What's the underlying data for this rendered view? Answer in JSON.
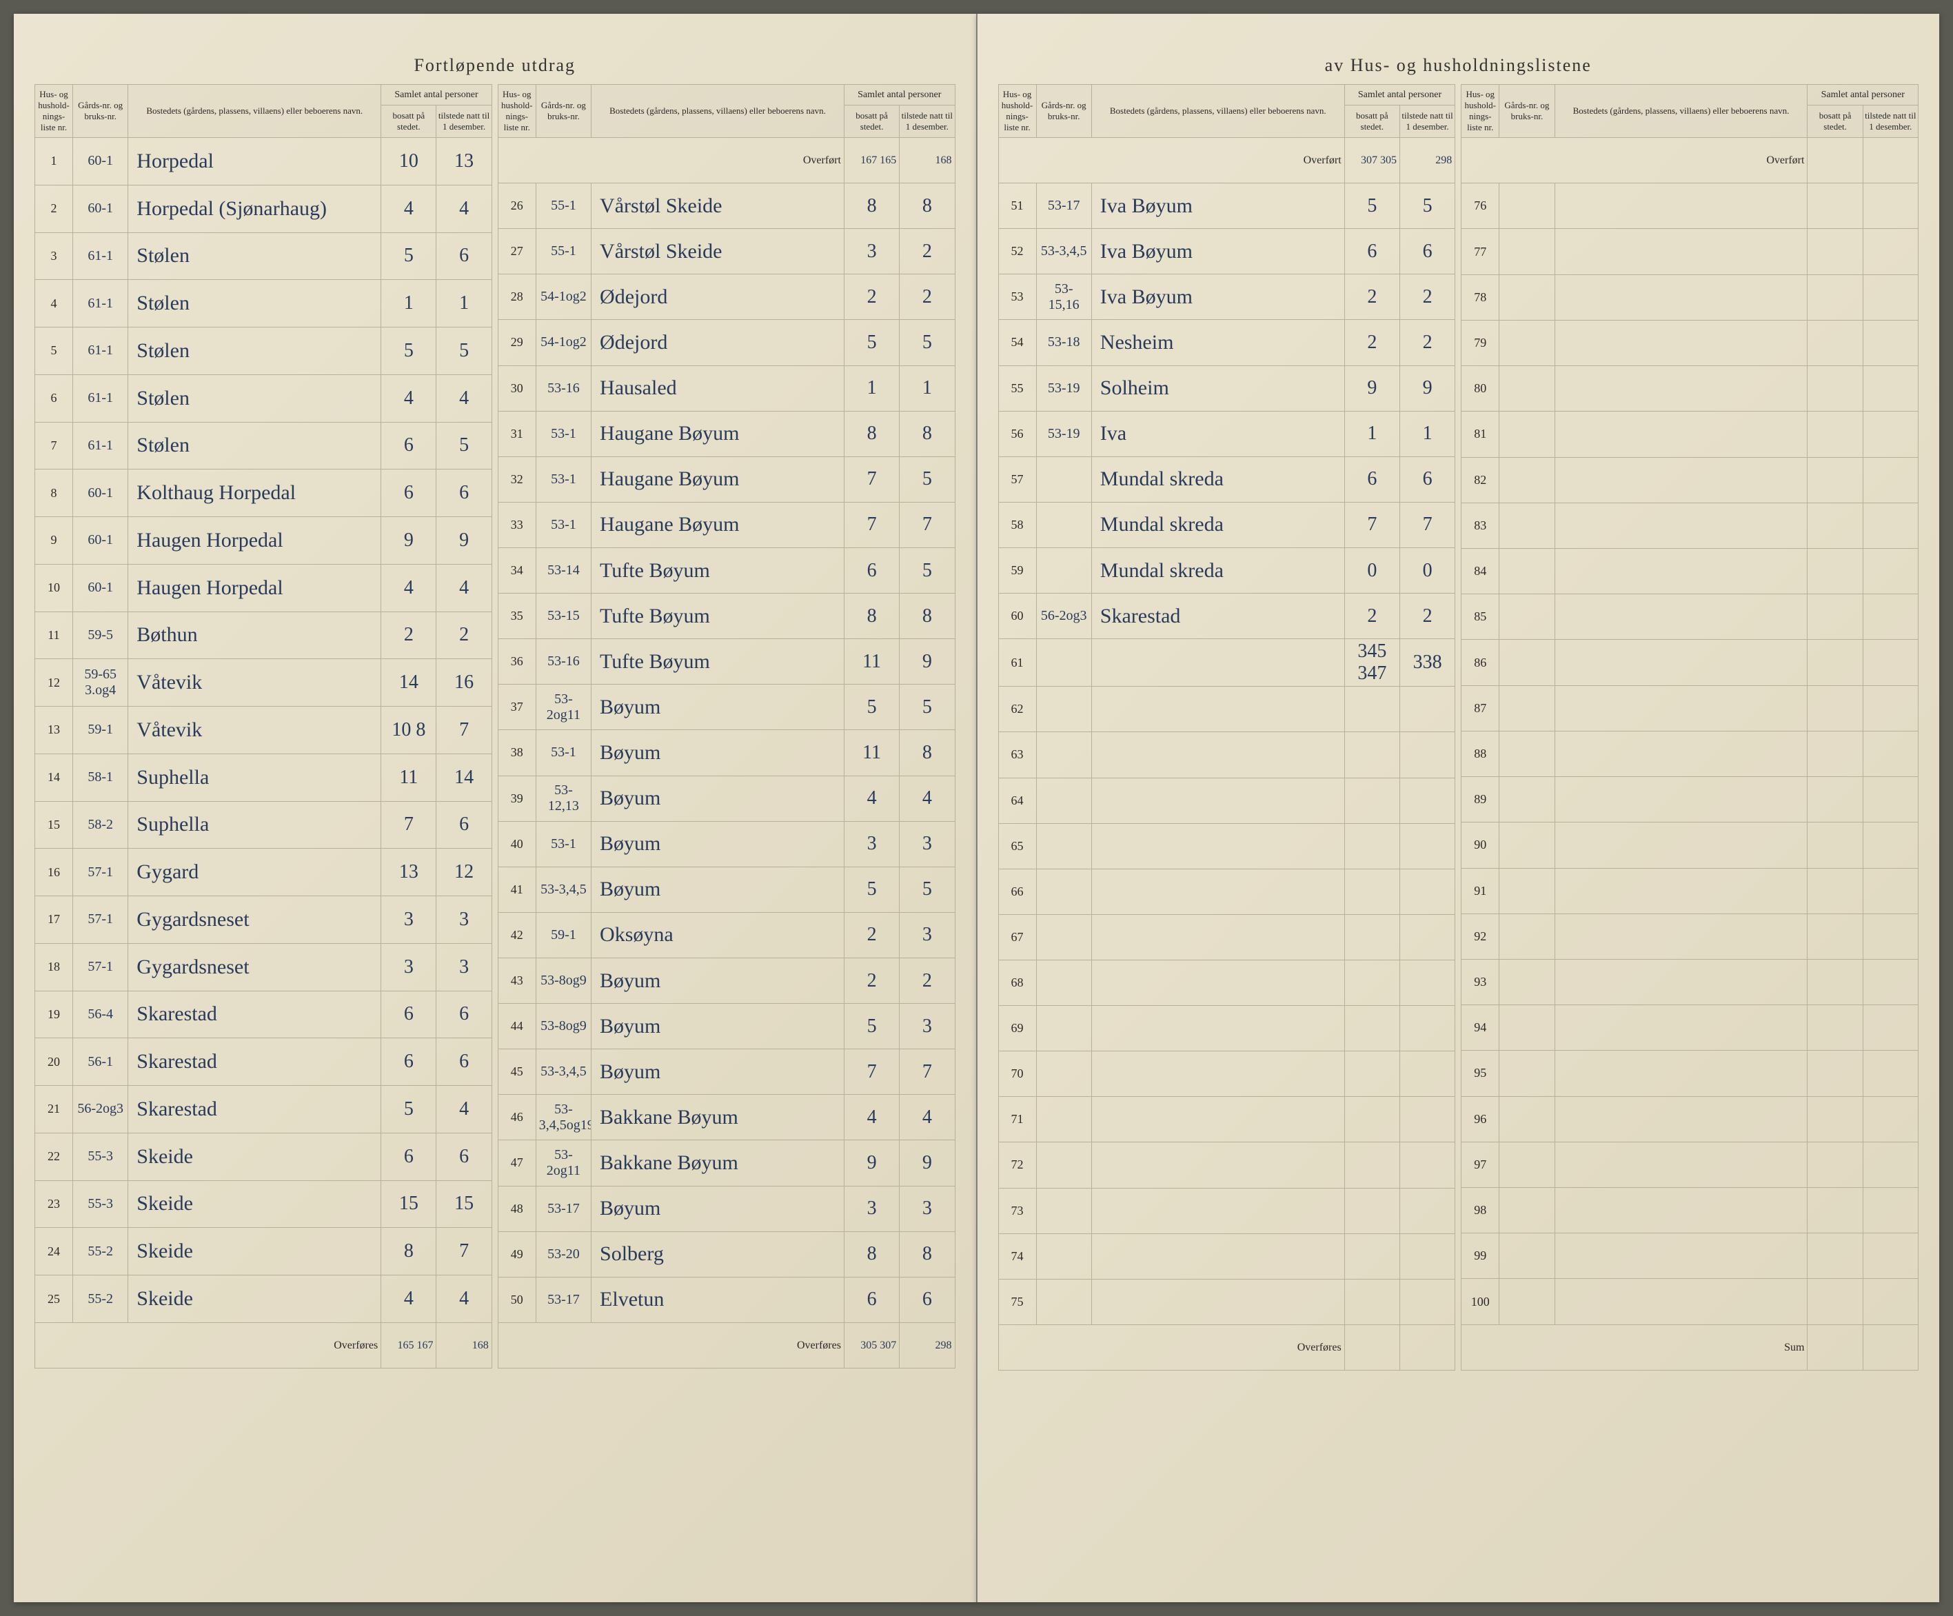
{
  "title_left": "Fortløpende utdrag",
  "title_right": "av Hus- og husholdningslistene",
  "headers": {
    "hus_nr": "Hus- og hushold-nings-liste nr.",
    "gards_nr": "Gårds-nr. og bruks-nr.",
    "bosted": "Bostedets (gårdens, plassens, villaens) eller beboerens navn.",
    "samlet": "Samlet antal personer",
    "bosatt": "bosatt på stedet.",
    "tilstede": "tilstede natt til 1 desember."
  },
  "overfort_label": "Overført",
  "overfores_label": "Overføres",
  "sum_label": "Sum",
  "block1_overfort": {
    "bosatt": "",
    "tilstede": ""
  },
  "block1": [
    {
      "nr": "1",
      "g": "60-1",
      "navn": "Horpedal",
      "b": "10",
      "t": "13"
    },
    {
      "nr": "2",
      "g": "60-1",
      "navn": "Horpedal (Sjønarhaug)",
      "b": "4",
      "t": "4"
    },
    {
      "nr": "3",
      "g": "61-1",
      "navn": "Stølen",
      "b": "5",
      "t": "6"
    },
    {
      "nr": "4",
      "g": "61-1",
      "navn": "Stølen",
      "b": "1",
      "t": "1"
    },
    {
      "nr": "5",
      "g": "61-1",
      "navn": "Stølen",
      "b": "5",
      "t": "5"
    },
    {
      "nr": "6",
      "g": "61-1",
      "navn": "Stølen",
      "b": "4",
      "t": "4"
    },
    {
      "nr": "7",
      "g": "61-1",
      "navn": "Stølen",
      "b": "6",
      "t": "5"
    },
    {
      "nr": "8",
      "g": "60-1",
      "navn": "Kolthaug Horpedal",
      "b": "6",
      "t": "6"
    },
    {
      "nr": "9",
      "g": "60-1",
      "navn": "Haugen Horpedal",
      "b": "9",
      "t": "9"
    },
    {
      "nr": "10",
      "g": "60-1",
      "navn": "Haugen Horpedal",
      "b": "4",
      "t": "4"
    },
    {
      "nr": "11",
      "g": "59-5",
      "navn": "Bøthun",
      "b": "2",
      "t": "2"
    },
    {
      "nr": "12",
      "g": "59-65 3.og4",
      "navn": "Våtevik",
      "b": "14",
      "t": "16"
    },
    {
      "nr": "13",
      "g": "59-1",
      "navn": "Våtevik",
      "b": "10 8",
      "t": "7"
    },
    {
      "nr": "14",
      "g": "58-1",
      "navn": "Suphella",
      "b": "11",
      "t": "14"
    },
    {
      "nr": "15",
      "g": "58-2",
      "navn": "Suphella",
      "b": "7",
      "t": "6"
    },
    {
      "nr": "16",
      "g": "57-1",
      "navn": "Gygard",
      "b": "13",
      "t": "12"
    },
    {
      "nr": "17",
      "g": "57-1",
      "navn": "Gygardsneset",
      "b": "3",
      "t": "3"
    },
    {
      "nr": "18",
      "g": "57-1",
      "navn": "Gygardsneset",
      "b": "3",
      "t": "3"
    },
    {
      "nr": "19",
      "g": "56-4",
      "navn": "Skarestad",
      "b": "6",
      "t": "6"
    },
    {
      "nr": "20",
      "g": "56-1",
      "navn": "Skarestad",
      "b": "6",
      "t": "6"
    },
    {
      "nr": "21",
      "g": "56-2og3",
      "navn": "Skarestad",
      "b": "5",
      "t": "4"
    },
    {
      "nr": "22",
      "g": "55-3",
      "navn": "Skeide",
      "b": "6",
      "t": "6"
    },
    {
      "nr": "23",
      "g": "55-3",
      "navn": "Skeide",
      "b": "15",
      "t": "15"
    },
    {
      "nr": "24",
      "g": "55-2",
      "navn": "Skeide",
      "b": "8",
      "t": "7"
    },
    {
      "nr": "25",
      "g": "55-2",
      "navn": "Skeide",
      "b": "4",
      "t": "4"
    }
  ],
  "block1_overfores": {
    "bosatt": "165 167",
    "tilstede": "168"
  },
  "block2_overfort": {
    "bosatt": "167 165",
    "tilstede": "168"
  },
  "block2": [
    {
      "nr": "26",
      "g": "55-1",
      "navn": "Vårstøl Skeide",
      "b": "8",
      "t": "8"
    },
    {
      "nr": "27",
      "g": "55-1",
      "navn": "Vårstøl Skeide",
      "b": "3",
      "t": "2"
    },
    {
      "nr": "28",
      "g": "54-1og2",
      "navn": "Ødejord",
      "b": "2",
      "t": "2"
    },
    {
      "nr": "29",
      "g": "54-1og2",
      "navn": "Ødejord",
      "b": "5",
      "t": "5"
    },
    {
      "nr": "30",
      "g": "53-16",
      "navn": "Hausaled",
      "b": "1",
      "t": "1"
    },
    {
      "nr": "31",
      "g": "53-1",
      "navn": "Haugane Bøyum",
      "b": "8",
      "t": "8"
    },
    {
      "nr": "32",
      "g": "53-1",
      "navn": "Haugane Bøyum",
      "b": "7",
      "t": "5"
    },
    {
      "nr": "33",
      "g": "53-1",
      "navn": "Haugane Bøyum",
      "b": "7",
      "t": "7"
    },
    {
      "nr": "34",
      "g": "53-14",
      "navn": "Tufte Bøyum",
      "b": "6",
      "t": "5"
    },
    {
      "nr": "35",
      "g": "53-15",
      "navn": "Tufte Bøyum",
      "b": "8",
      "t": "8"
    },
    {
      "nr": "36",
      "g": "53-16",
      "navn": "Tufte Bøyum",
      "b": "11",
      "t": "9"
    },
    {
      "nr": "37",
      "g": "53-2og11",
      "navn": "Bøyum",
      "b": "5",
      "t": "5"
    },
    {
      "nr": "38",
      "g": "53-1",
      "navn": "Bøyum",
      "b": "11",
      "t": "8"
    },
    {
      "nr": "39",
      "g": "53-12,13",
      "navn": "Bøyum",
      "b": "4",
      "t": "4"
    },
    {
      "nr": "40",
      "g": "53-1",
      "navn": "Bøyum",
      "b": "3",
      "t": "3"
    },
    {
      "nr": "41",
      "g": "53-3,4,5",
      "navn": "Bøyum",
      "b": "5",
      "t": "5"
    },
    {
      "nr": "42",
      "g": "59-1",
      "navn": "Oksøyna",
      "b": "2",
      "t": "3"
    },
    {
      "nr": "43",
      "g": "53-8og9",
      "navn": "Bøyum",
      "b": "2",
      "t": "2"
    },
    {
      "nr": "44",
      "g": "53-8og9",
      "navn": "Bøyum",
      "b": "5",
      "t": "3"
    },
    {
      "nr": "45",
      "g": "53-3,4,5",
      "navn": "Bøyum",
      "b": "7",
      "t": "7"
    },
    {
      "nr": "46",
      "g": "53-3,4,5og19",
      "navn": "Bakkane Bøyum",
      "b": "4",
      "t": "4"
    },
    {
      "nr": "47",
      "g": "53-2og11",
      "navn": "Bakkane Bøyum",
      "b": "9",
      "t": "9"
    },
    {
      "nr": "48",
      "g": "53-17",
      "navn": "Bøyum",
      "b": "3",
      "t": "3"
    },
    {
      "nr": "49",
      "g": "53-20",
      "navn": "Solberg",
      "b": "8",
      "t": "8"
    },
    {
      "nr": "50",
      "g": "53-17",
      "navn": "Elvetun",
      "b": "6",
      "t": "6"
    }
  ],
  "block2_overfores": {
    "bosatt": "305 307",
    "tilstede": "298"
  },
  "block3_overfort": {
    "bosatt": "307 305",
    "tilstede": "298"
  },
  "block3": [
    {
      "nr": "51",
      "g": "53-17",
      "navn": "Iva Bøyum",
      "b": "5",
      "t": "5"
    },
    {
      "nr": "52",
      "g": "53-3,4,5",
      "navn": "Iva Bøyum",
      "b": "6",
      "t": "6"
    },
    {
      "nr": "53",
      "g": "53-15,16",
      "navn": "Iva Bøyum",
      "b": "2",
      "t": "2"
    },
    {
      "nr": "54",
      "g": "53-18",
      "navn": "Nesheim",
      "b": "2",
      "t": "2"
    },
    {
      "nr": "55",
      "g": "53-19",
      "navn": "Solheim",
      "b": "9",
      "t": "9"
    },
    {
      "nr": "56",
      "g": "53-19",
      "navn": "Iva",
      "b": "1",
      "t": "1"
    },
    {
      "nr": "57",
      "g": "",
      "navn": "Mundal skreda",
      "b": "6",
      "t": "6"
    },
    {
      "nr": "58",
      "g": "",
      "navn": "Mundal skreda",
      "b": "7",
      "t": "7"
    },
    {
      "nr": "59",
      "g": "",
      "navn": "Mundal skreda",
      "b": "0",
      "t": "0"
    },
    {
      "nr": "60",
      "g": "56-2og3",
      "navn": "Skarestad",
      "b": "2",
      "t": "2"
    },
    {
      "nr": "61",
      "g": "",
      "navn": "",
      "b": "345 347",
      "t": "338"
    },
    {
      "nr": "62",
      "g": "",
      "navn": "",
      "b": "",
      "t": ""
    },
    {
      "nr": "63",
      "g": "",
      "navn": "",
      "b": "",
      "t": ""
    },
    {
      "nr": "64",
      "g": "",
      "navn": "",
      "b": "",
      "t": ""
    },
    {
      "nr": "65",
      "g": "",
      "navn": "",
      "b": "",
      "t": ""
    },
    {
      "nr": "66",
      "g": "",
      "navn": "",
      "b": "",
      "t": ""
    },
    {
      "nr": "67",
      "g": "",
      "navn": "",
      "b": "",
      "t": ""
    },
    {
      "nr": "68",
      "g": "",
      "navn": "",
      "b": "",
      "t": ""
    },
    {
      "nr": "69",
      "g": "",
      "navn": "",
      "b": "",
      "t": ""
    },
    {
      "nr": "70",
      "g": "",
      "navn": "",
      "b": "",
      "t": ""
    },
    {
      "nr": "71",
      "g": "",
      "navn": "",
      "b": "",
      "t": ""
    },
    {
      "nr": "72",
      "g": "",
      "navn": "",
      "b": "",
      "t": ""
    },
    {
      "nr": "73",
      "g": "",
      "navn": "",
      "b": "",
      "t": ""
    },
    {
      "nr": "74",
      "g": "",
      "navn": "",
      "b": "",
      "t": ""
    },
    {
      "nr": "75",
      "g": "",
      "navn": "",
      "b": "",
      "t": ""
    }
  ],
  "block3_overfores": {
    "bosatt": "",
    "tilstede": ""
  },
  "block4_overfort": {
    "bosatt": "",
    "tilstede": ""
  },
  "block4": [
    {
      "nr": "76",
      "g": "",
      "navn": "",
      "b": "",
      "t": ""
    },
    {
      "nr": "77",
      "g": "",
      "navn": "",
      "b": "",
      "t": ""
    },
    {
      "nr": "78",
      "g": "",
      "navn": "",
      "b": "",
      "t": ""
    },
    {
      "nr": "79",
      "g": "",
      "navn": "",
      "b": "",
      "t": ""
    },
    {
      "nr": "80",
      "g": "",
      "navn": "",
      "b": "",
      "t": ""
    },
    {
      "nr": "81",
      "g": "",
      "navn": "",
      "b": "",
      "t": ""
    },
    {
      "nr": "82",
      "g": "",
      "navn": "",
      "b": "",
      "t": ""
    },
    {
      "nr": "83",
      "g": "",
      "navn": "",
      "b": "",
      "t": ""
    },
    {
      "nr": "84",
      "g": "",
      "navn": "",
      "b": "",
      "t": ""
    },
    {
      "nr": "85",
      "g": "",
      "navn": "",
      "b": "",
      "t": ""
    },
    {
      "nr": "86",
      "g": "",
      "navn": "",
      "b": "",
      "t": ""
    },
    {
      "nr": "87",
      "g": "",
      "navn": "",
      "b": "",
      "t": ""
    },
    {
      "nr": "88",
      "g": "",
      "navn": "",
      "b": "",
      "t": ""
    },
    {
      "nr": "89",
      "g": "",
      "navn": "",
      "b": "",
      "t": ""
    },
    {
      "nr": "90",
      "g": "",
      "navn": "",
      "b": "",
      "t": ""
    },
    {
      "nr": "91",
      "g": "",
      "navn": "",
      "b": "",
      "t": ""
    },
    {
      "nr": "92",
      "g": "",
      "navn": "",
      "b": "",
      "t": ""
    },
    {
      "nr": "93",
      "g": "",
      "navn": "",
      "b": "",
      "t": ""
    },
    {
      "nr": "94",
      "g": "",
      "navn": "",
      "b": "",
      "t": ""
    },
    {
      "nr": "95",
      "g": "",
      "navn": "",
      "b": "",
      "t": ""
    },
    {
      "nr": "96",
      "g": "",
      "navn": "",
      "b": "",
      "t": ""
    },
    {
      "nr": "97",
      "g": "",
      "navn": "",
      "b": "",
      "t": ""
    },
    {
      "nr": "98",
      "g": "",
      "navn": "",
      "b": "",
      "t": ""
    },
    {
      "nr": "99",
      "g": "",
      "navn": "",
      "b": "",
      "t": ""
    },
    {
      "nr": "100",
      "g": "",
      "navn": "",
      "b": "",
      "t": ""
    }
  ],
  "block4_sum": {
    "bosatt": "",
    "tilstede": ""
  },
  "colors": {
    "paper": "#e5dec8",
    "ink_print": "#333333",
    "ink_hand": "#2a3a5a",
    "rule": "#b8b098"
  }
}
